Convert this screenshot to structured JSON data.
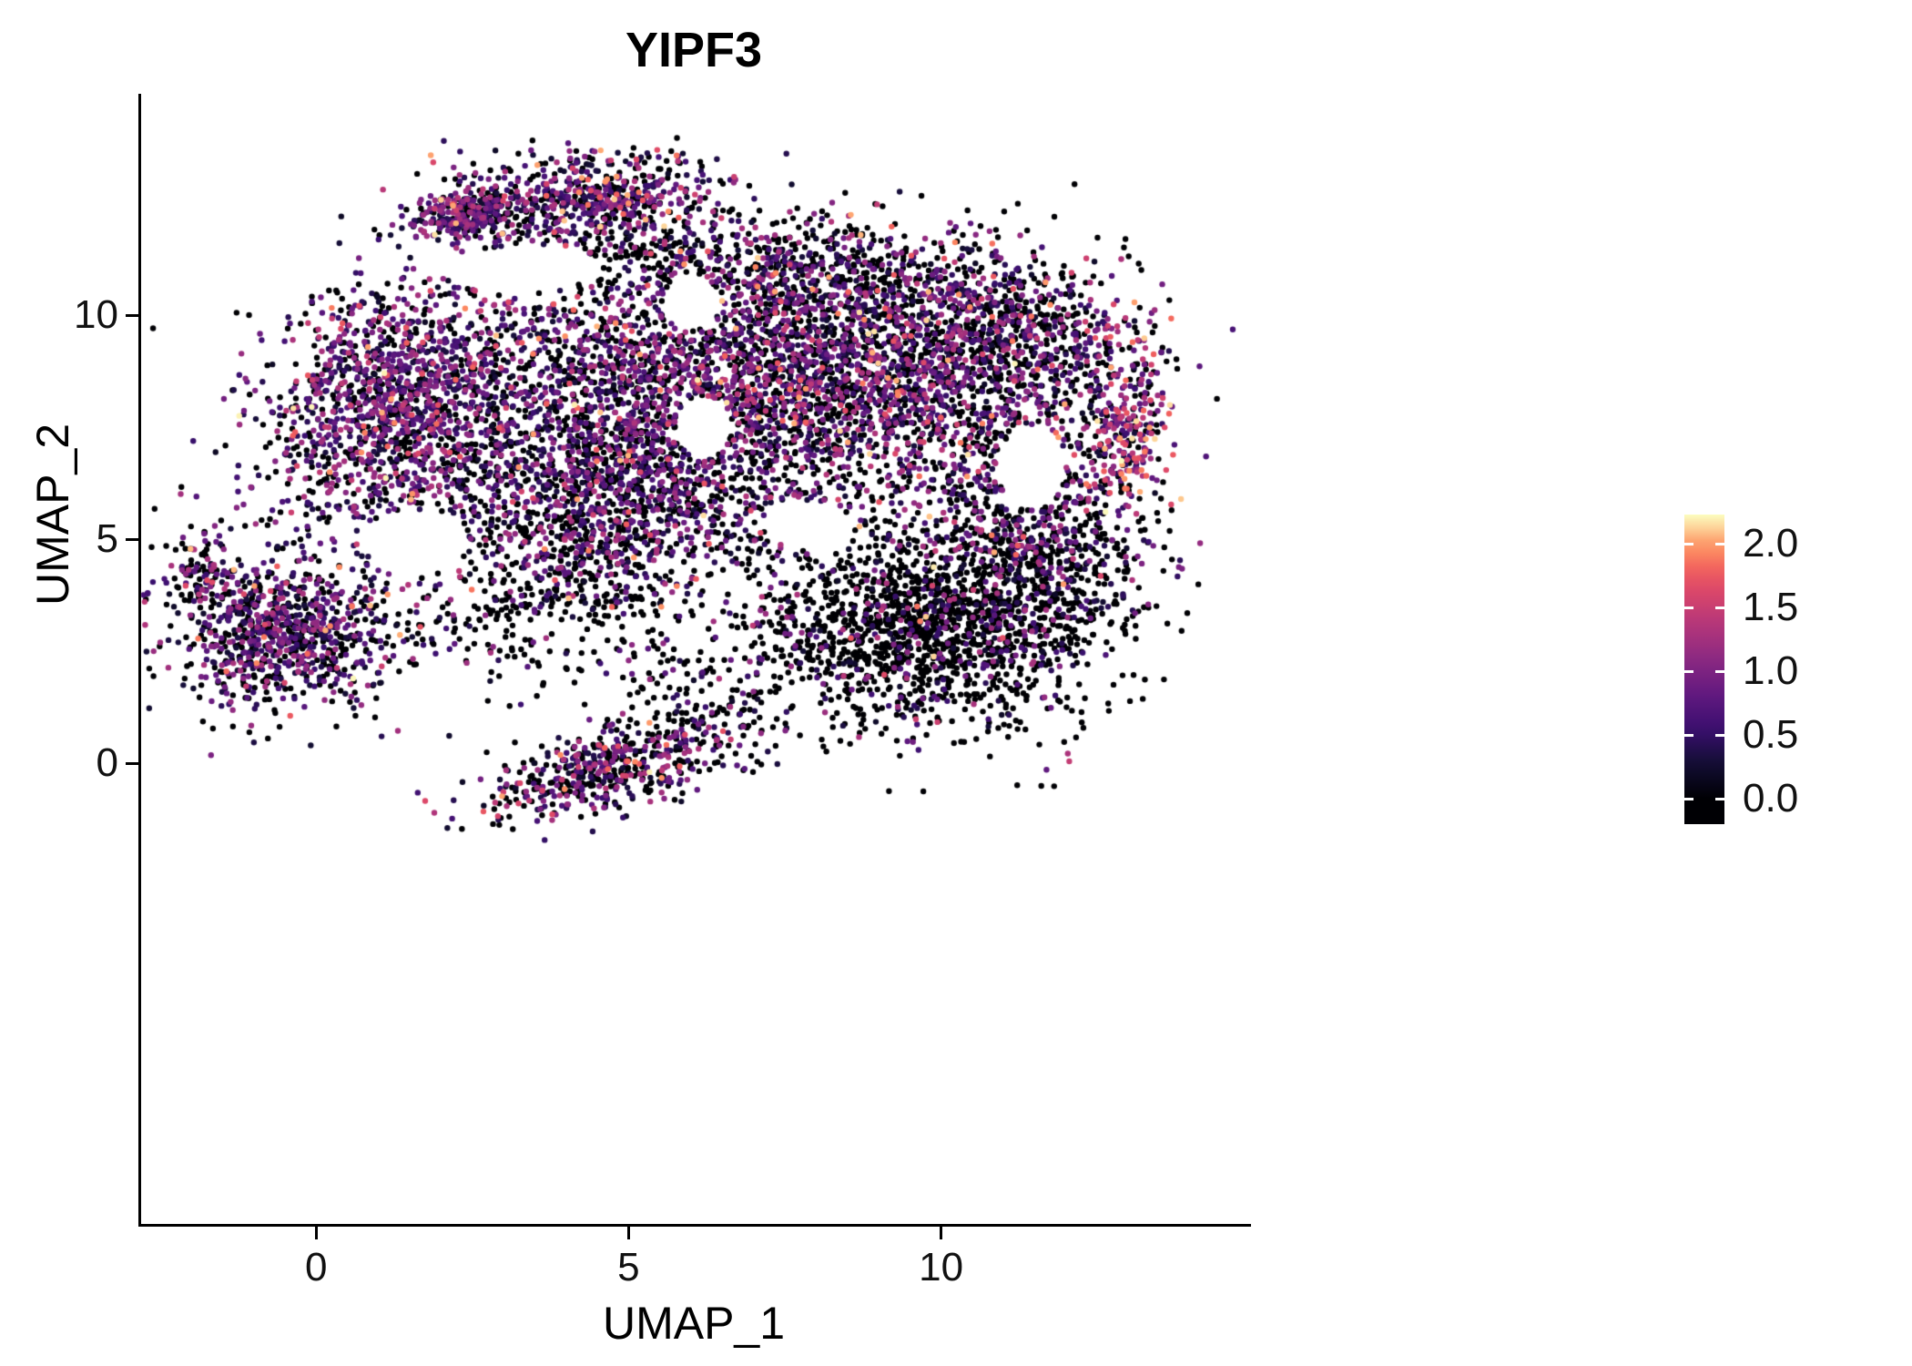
{
  "title": "YIPF3",
  "seed": 20240607,
  "chart_data": {
    "type": "scatter",
    "title": "YIPF3",
    "xlabel": "UMAP_1",
    "ylabel": "UMAP_2",
    "grid": false,
    "legend_position": "right",
    "background_color": "#ffffff",
    "axis_color": "#000000",
    "x_domain": [
      -2.8,
      14.9
    ],
    "y_domain": [
      -10.3,
      14.9
    ],
    "x_ticks": [
      {
        "value": 0,
        "label": "0"
      },
      {
        "value": 5,
        "label": "5"
      },
      {
        "value": 10,
        "label": "10"
      }
    ],
    "y_ticks": [
      {
        "value": 0,
        "label": "0"
      },
      {
        "value": 5,
        "label": "5"
      },
      {
        "value": 10,
        "label": "10"
      }
    ],
    "point_radius_px": 3.2,
    "cmap_max": 2.2,
    "colormap": [
      [
        0,
        "#000004"
      ],
      [
        0.13,
        "#140e36"
      ],
      [
        0.25,
        "#3b0f70"
      ],
      [
        0.38,
        "#641a80"
      ],
      [
        0.5,
        "#8c2981"
      ],
      [
        0.63,
        "#b73779"
      ],
      [
        0.75,
        "#de4968"
      ],
      [
        0.82,
        "#f1605d"
      ],
      [
        0.88,
        "#fc8961"
      ],
      [
        0.94,
        "#feb078"
      ],
      [
        1,
        "#fcfdbf"
      ]
    ],
    "colorbar": {
      "vmin": -0.2,
      "vmax": 2.23,
      "ticks": [
        {
          "value": 2.0,
          "label": "2.0"
        },
        {
          "value": 1.5,
          "label": "1.5"
        },
        {
          "value": 1.0,
          "label": "1.0"
        },
        {
          "value": 0.5,
          "label": "0.5"
        },
        {
          "value": 0.0,
          "label": "0.0"
        }
      ]
    },
    "expr_bins": {
      "low": [
        0.18,
        0.65
      ],
      "mid": [
        0.65,
        1.3
      ],
      "high_base": 1.3,
      "high_span": 0.9,
      "high_pow": 1.8
    },
    "holes": [
      [
        11.45,
        6.6,
        0.55,
        0.95
      ],
      [
        6.2,
        7.5,
        0.45,
        0.7
      ],
      [
        7.9,
        5.3,
        0.7,
        0.55
      ],
      [
        6.0,
        10.3,
        0.45,
        0.65
      ],
      [
        3.3,
        11.05,
        1.3,
        0.5
      ],
      [
        1.6,
        4.9,
        0.8,
        0.7
      ]
    ],
    "clusters": [
      {
        "name": "top-cap",
        "cx": 4.4,
        "cy": 12.65,
        "sx": 1.05,
        "sy": 0.5,
        "rot": 5,
        "n": 600,
        "mix": [
          0.32,
          0.3,
          0.28,
          0.1
        ]
      },
      {
        "name": "top-cap-left-dense",
        "cx": 2.35,
        "cy": 12.2,
        "sx": 0.5,
        "sy": 0.28,
        "rot": 15,
        "n": 280,
        "mix": [
          0.3,
          0.35,
          0.3,
          0.05
        ]
      },
      {
        "name": "below-cap-sparse",
        "cx": 5.8,
        "cy": 11.4,
        "sx": 1.5,
        "sy": 0.5,
        "rot": 0,
        "n": 220,
        "mix": [
          0.6,
          0.18,
          0.17,
          0.05
        ]
      },
      {
        "name": "main-left-lobe",
        "cx": 1.2,
        "cy": 7.9,
        "sx": 1.05,
        "sy": 1.35,
        "rot": -15,
        "n": 1300,
        "mix": [
          0.3,
          0.32,
          0.3,
          0.08
        ]
      },
      {
        "name": "main-center",
        "cx": 5.0,
        "cy": 8.4,
        "sx": 1.9,
        "sy": 1.45,
        "rot": 0,
        "n": 1700,
        "mix": [
          0.45,
          0.23,
          0.26,
          0.06
        ]
      },
      {
        "name": "main-center-lower",
        "cx": 5.2,
        "cy": 6.0,
        "sx": 1.7,
        "sy": 0.95,
        "rot": 0,
        "n": 850,
        "mix": [
          0.45,
          0.25,
          0.25,
          0.05
        ]
      },
      {
        "name": "main-right",
        "cx": 8.6,
        "cy": 8.7,
        "sx": 1.7,
        "sy": 1.25,
        "rot": 0,
        "n": 1700,
        "mix": [
          0.4,
          0.24,
          0.28,
          0.08
        ]
      },
      {
        "name": "right-upper",
        "cx": 11.2,
        "cy": 9.5,
        "sx": 1.15,
        "sy": 0.85,
        "rot": -20,
        "n": 650,
        "mix": [
          0.48,
          0.22,
          0.22,
          0.08
        ]
      },
      {
        "name": "right-edge-hot",
        "cx": 12.95,
        "cy": 7.4,
        "sx": 0.35,
        "sy": 1.0,
        "rot": 0,
        "n": 240,
        "mix": [
          0.15,
          0.18,
          0.34,
          0.33
        ]
      },
      {
        "name": "right-mid-ring",
        "cx": 11.1,
        "cy": 6.3,
        "sx": 1.0,
        "sy": 1.0,
        "rot": 0,
        "n": 420,
        "mix": [
          0.5,
          0.22,
          0.22,
          0.06
        ]
      },
      {
        "name": "bottom-right-dark",
        "cx": 9.6,
        "cy": 2.9,
        "sx": 1.35,
        "sy": 1.05,
        "rot": -10,
        "n": 1500,
        "mix": [
          0.78,
          0.12,
          0.08,
          0.02
        ]
      },
      {
        "name": "bottom-right-dark-upper",
        "cx": 11.7,
        "cy": 4.4,
        "sx": 0.85,
        "sy": 0.9,
        "rot": 0,
        "n": 500,
        "mix": [
          0.7,
          0.15,
          0.12,
          0.03
        ]
      },
      {
        "name": "left-island",
        "cx": -0.55,
        "cy": 2.95,
        "sx": 0.85,
        "sy": 0.9,
        "rot": 10,
        "n": 900,
        "mix": [
          0.42,
          0.28,
          0.25,
          0.05
        ]
      },
      {
        "name": "left-island-tip",
        "cx": -1.85,
        "cy": 4.35,
        "sx": 0.25,
        "sy": 0.35,
        "rot": 0,
        "n": 80,
        "mix": [
          0.4,
          0.3,
          0.25,
          0.05
        ]
      },
      {
        "name": "bottom-strip",
        "cx": 4.7,
        "cy": -0.1,
        "sx": 1.05,
        "sy": 0.42,
        "rot": 22,
        "n": 520,
        "mix": [
          0.45,
          0.22,
          0.23,
          0.1
        ]
      },
      {
        "name": "mid-sparse-band",
        "cx": 3.1,
        "cy": 3.4,
        "sx": 1.4,
        "sy": 0.85,
        "rot": 5,
        "n": 280,
        "mix": [
          0.75,
          0.12,
          0.1,
          0.03
        ]
      },
      {
        "name": "connector",
        "cx": 4.3,
        "cy": 4.7,
        "sx": 0.75,
        "sy": 0.6,
        "rot": 0,
        "n": 240,
        "mix": [
          0.5,
          0.25,
          0.2,
          0.05
        ]
      },
      {
        "name": "below-main-sparse",
        "cx": 6.1,
        "cy": 1.6,
        "sx": 0.9,
        "sy": 1.0,
        "rot": 0,
        "n": 160,
        "mix": [
          0.65,
          0.15,
          0.15,
          0.05
        ]
      },
      {
        "name": "upper-right-band",
        "cx": 8.3,
        "cy": 10.8,
        "sx": 1.6,
        "sy": 0.6,
        "rot": 0,
        "n": 500,
        "mix": [
          0.5,
          0.22,
          0.22,
          0.06
        ]
      }
    ]
  }
}
